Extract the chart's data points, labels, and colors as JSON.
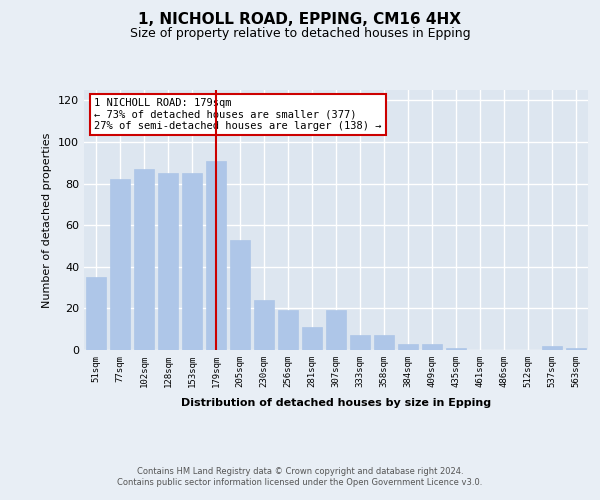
{
  "title": "1, NICHOLL ROAD, EPPING, CM16 4HX",
  "subtitle": "Size of property relative to detached houses in Epping",
  "xlabel": "Distribution of detached houses by size in Epping",
  "ylabel": "Number of detached properties",
  "categories": [
    "51sqm",
    "77sqm",
    "102sqm",
    "128sqm",
    "153sqm",
    "179sqm",
    "205sqm",
    "230sqm",
    "256sqm",
    "281sqm",
    "307sqm",
    "333sqm",
    "358sqm",
    "384sqm",
    "409sqm",
    "435sqm",
    "461sqm",
    "486sqm",
    "512sqm",
    "537sqm",
    "563sqm"
  ],
  "values": [
    35,
    82,
    87,
    85,
    85,
    91,
    53,
    24,
    19,
    11,
    19,
    7,
    7,
    3,
    3,
    1,
    0,
    0,
    0,
    2,
    1
  ],
  "bar_color": "#aec6e8",
  "bar_edgecolor": "#aec6e8",
  "bar_linewidth": 0.5,
  "vline_x": 5,
  "vline_color": "#cc0000",
  "annotation_text": "1 NICHOLL ROAD: 179sqm\n← 73% of detached houses are smaller (377)\n27% of semi-detached houses are larger (138) →",
  "annotation_box_edgecolor": "#cc0000",
  "annotation_box_facecolor": "#ffffff",
  "ylim": [
    0,
    125
  ],
  "yticks": [
    0,
    20,
    40,
    60,
    80,
    100,
    120
  ],
  "background_color": "#e8eef5",
  "axes_facecolor": "#dde6f0",
  "title_fontsize": 11,
  "subtitle_fontsize": 9,
  "footer_text": "Contains HM Land Registry data © Crown copyright and database right 2024.\nContains public sector information licensed under the Open Government Licence v3.0.",
  "grid_color": "#ffffff",
  "grid_linewidth": 1.0,
  "xlabel_fontsize": 8,
  "ylabel_fontsize": 8
}
